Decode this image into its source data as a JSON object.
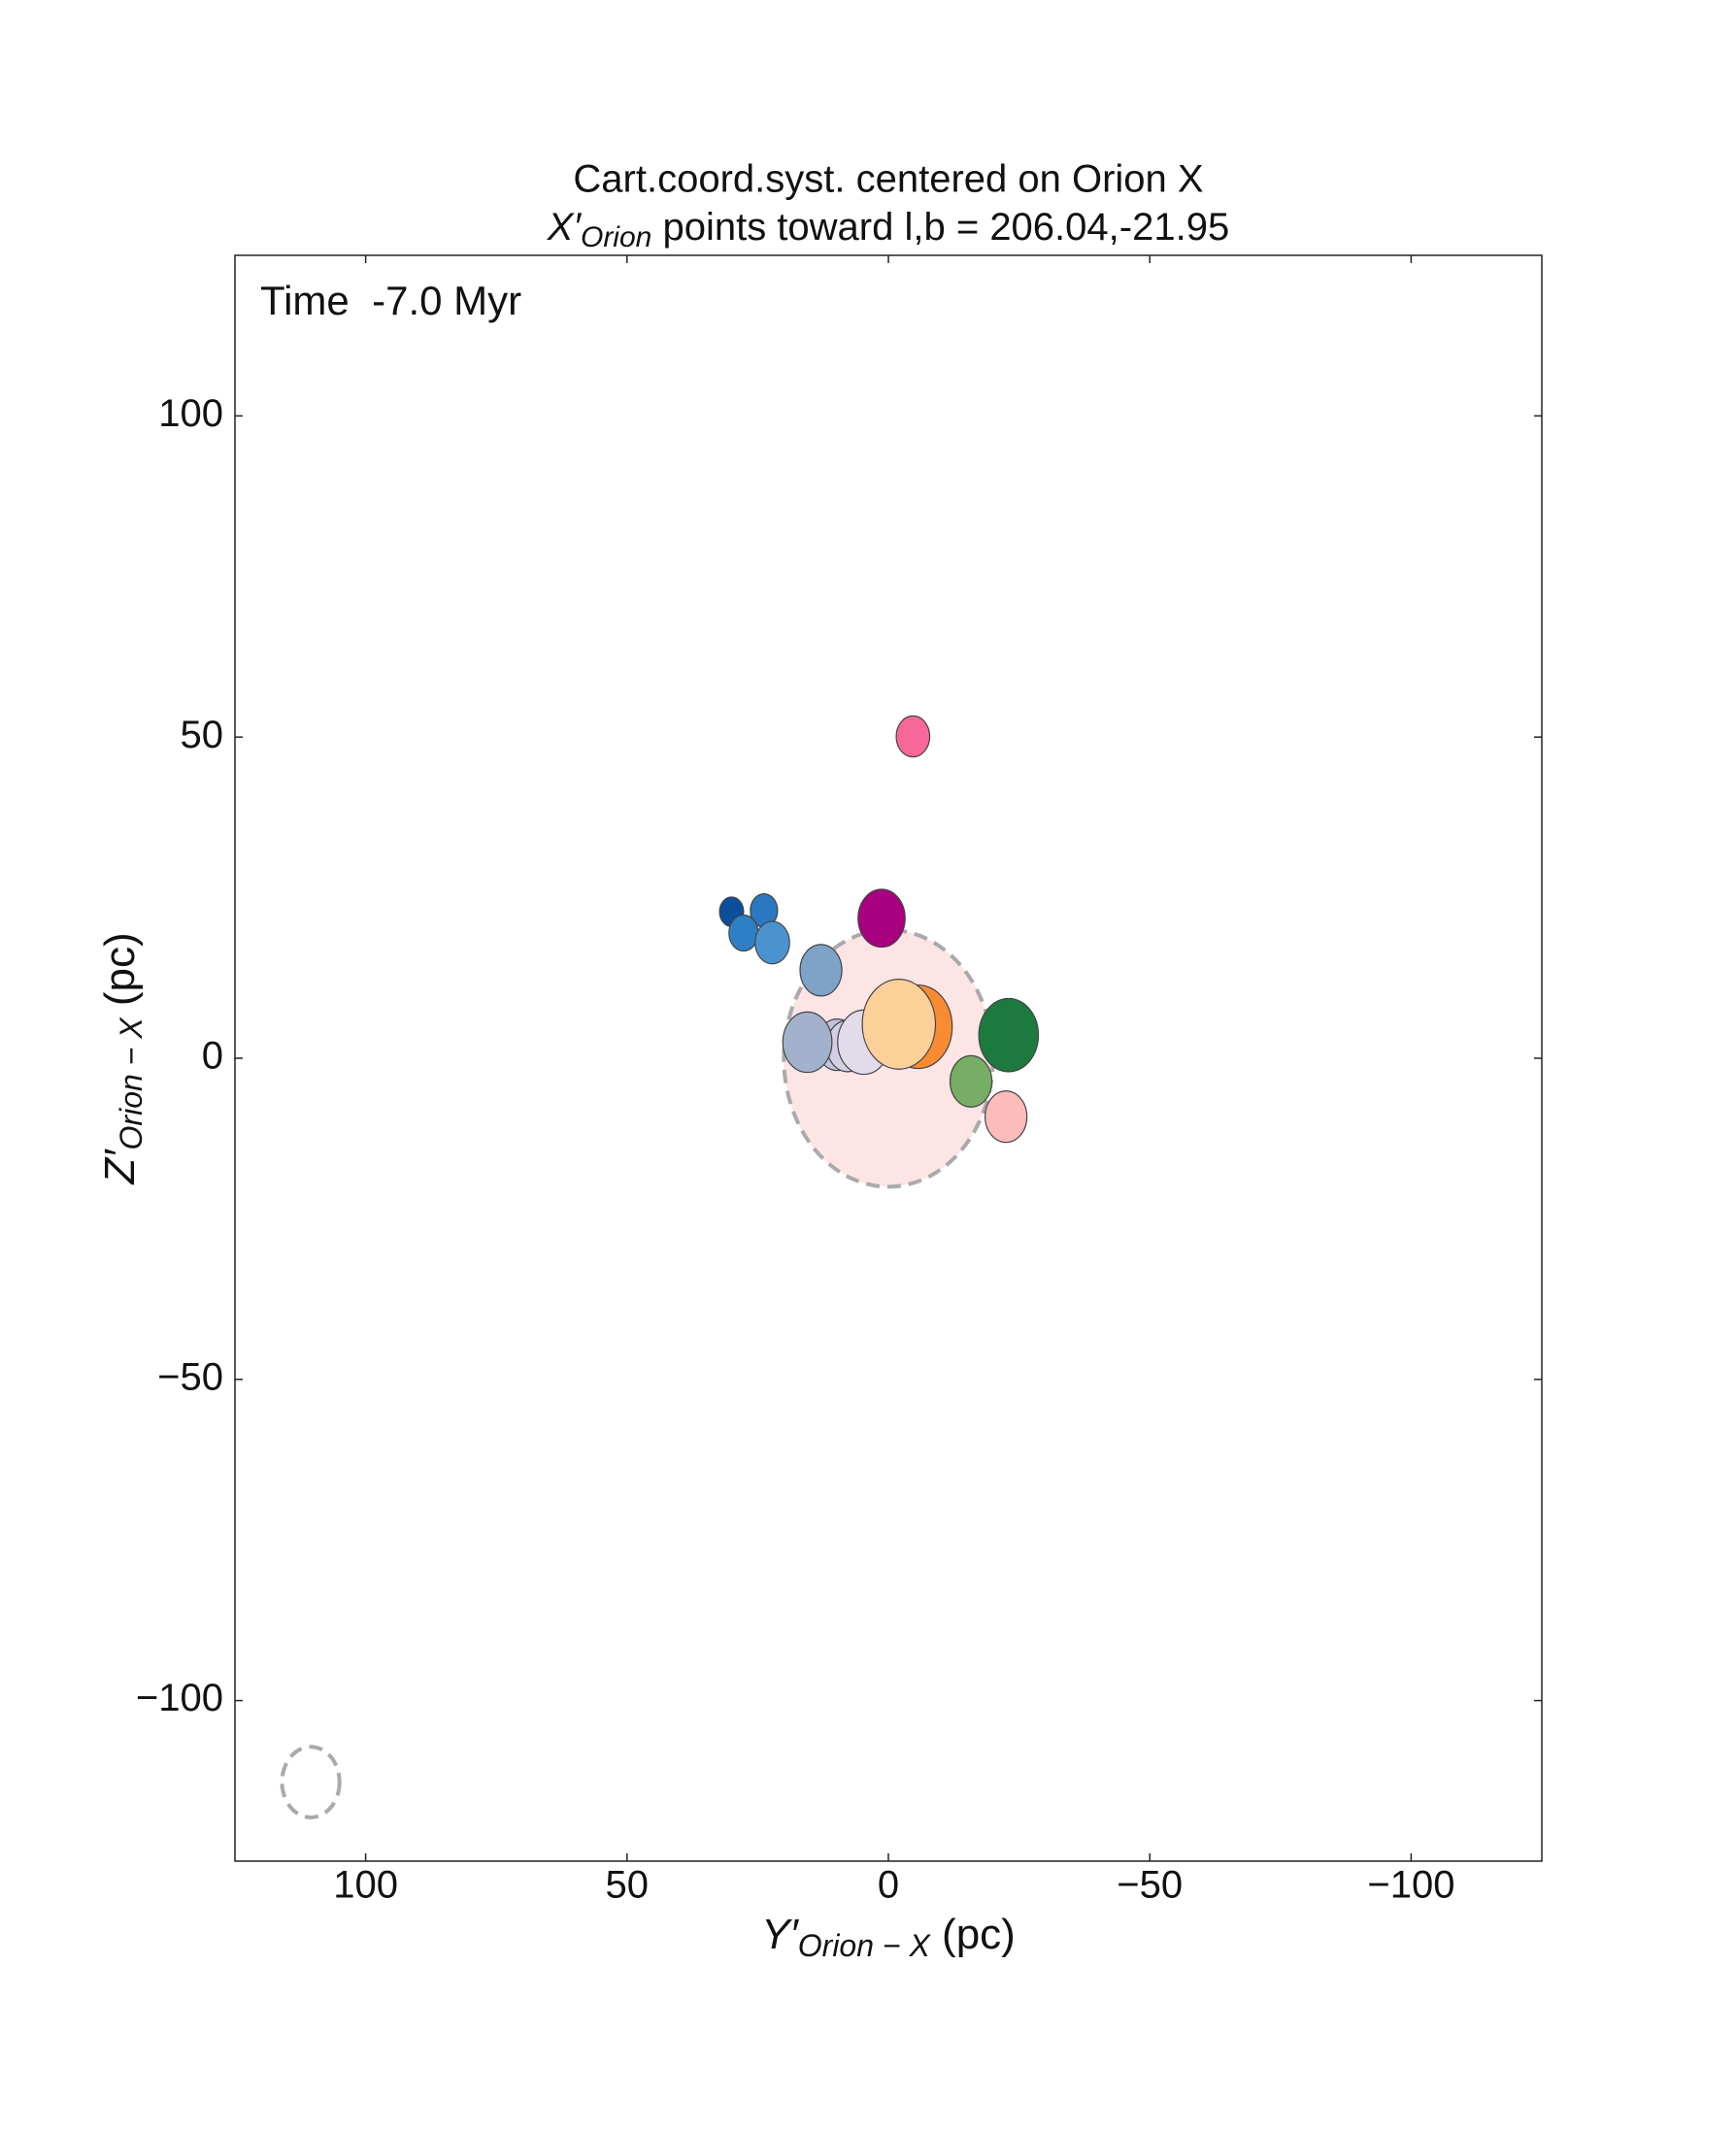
{
  "chart_data": {
    "type": "bubble",
    "title": "Cart.coord.syst. centered on Orion X",
    "subtitle": {
      "symbol": "X′",
      "subscript": "Orion",
      "text": " points toward l,b = 206.04,-21.95"
    },
    "annotation": "Time  -7.0 Myr",
    "xlabel": {
      "symbol": "Y′",
      "subscript": "Orion − X",
      "text": " (pc)"
    },
    "ylabel": {
      "symbol": "Z′",
      "subscript": "Orion − X",
      "text": " (pc)"
    },
    "xlim": [
      125,
      -125
    ],
    "ylim": [
      -125,
      125
    ],
    "xticks": [
      100,
      50,
      0,
      {
        "value": -50,
        "label": "−50"
      },
      {
        "value": -100,
        "label": "−100"
      }
    ],
    "yticks": [
      {
        "value": -100,
        "label": "−100"
      },
      {
        "value": -50,
        "label": "−50"
      },
      0,
      50,
      100
    ],
    "region": {
      "x": 0,
      "y": 0,
      "r": 20,
      "color": "#fde5e5"
    },
    "reference": {
      "x": 110.5,
      "y": -112.7,
      "r": 5.5
    },
    "x": [
      -4.7,
      30,
      23.8,
      27.7,
      22.2,
      12.9,
      1.3,
      9.8,
      7.8,
      4.7,
      15.5,
      -5.7,
      -2,
      -23,
      -15.8,
      -22.5
    ],
    "values": [
      50.1,
      22.8,
      23,
      19.5,
      18,
      13.7,
      21.8,
      2.1,
      1.9,
      2.5,
      2.5,
      4.9,
      5.3,
      3.6,
      -3.6,
      -9.1
    ],
    "sizes": [
      3.2,
      2.3,
      2.6,
      2.8,
      3.3,
      4,
      4.5,
      4,
      4,
      5,
      4.7,
      6.5,
      7,
      5.7,
      4,
      4
    ],
    "colors": [
      "#f7679a",
      "#0b4f9c",
      "#2a78c0",
      "#2f7fc4",
      "#4a93cf",
      "#7fa3c8",
      "#a8007e",
      "#c3c2dd",
      "#d2cfe4",
      "#e2dcea",
      "#a3b2cc",
      "#f98b33",
      "#fdd09a",
      "#1d7a3e",
      "#77ad64",
      "#fdbcbc"
    ]
  }
}
